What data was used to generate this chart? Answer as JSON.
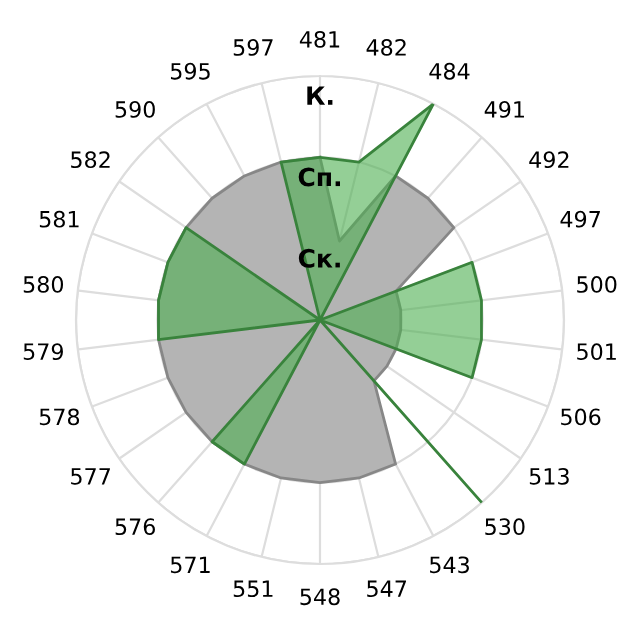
{
  "chart_data": {
    "type": "radar",
    "categories": [
      "481",
      "482",
      "484",
      "491",
      "492",
      "497",
      "500",
      "501",
      "506",
      "513",
      "530",
      "543",
      "547",
      "548",
      "551",
      "571",
      "576",
      "577",
      "578",
      "579",
      "580",
      "581",
      "582",
      "590",
      "595",
      "597"
    ],
    "series": [
      {
        "color": "#b4b4b4",
        "values": [
          2,
          1,
          2,
          2,
          2,
          1,
          1,
          1,
          1,
          1,
          1,
          2,
          2,
          2,
          2,
          2,
          2,
          2,
          2,
          2,
          2,
          2,
          2,
          2,
          2,
          2
        ]
      },
      {
        "color": "#4caf50",
        "values": [
          2,
          2,
          3,
          0,
          0,
          2,
          2,
          2,
          2,
          0,
          3,
          0,
          0,
          0,
          0,
          2,
          2,
          0,
          0,
          2,
          2,
          2,
          2,
          0,
          0,
          2
        ]
      }
    ],
    "ylim": [
      0,
      3
    ],
    "yticks": [
      {
        "value": 1,
        "label": "Ск."
      },
      {
        "value": 2,
        "label": "Сп."
      },
      {
        "value": 3,
        "label": "К."
      }
    ],
    "grid": true
  }
}
